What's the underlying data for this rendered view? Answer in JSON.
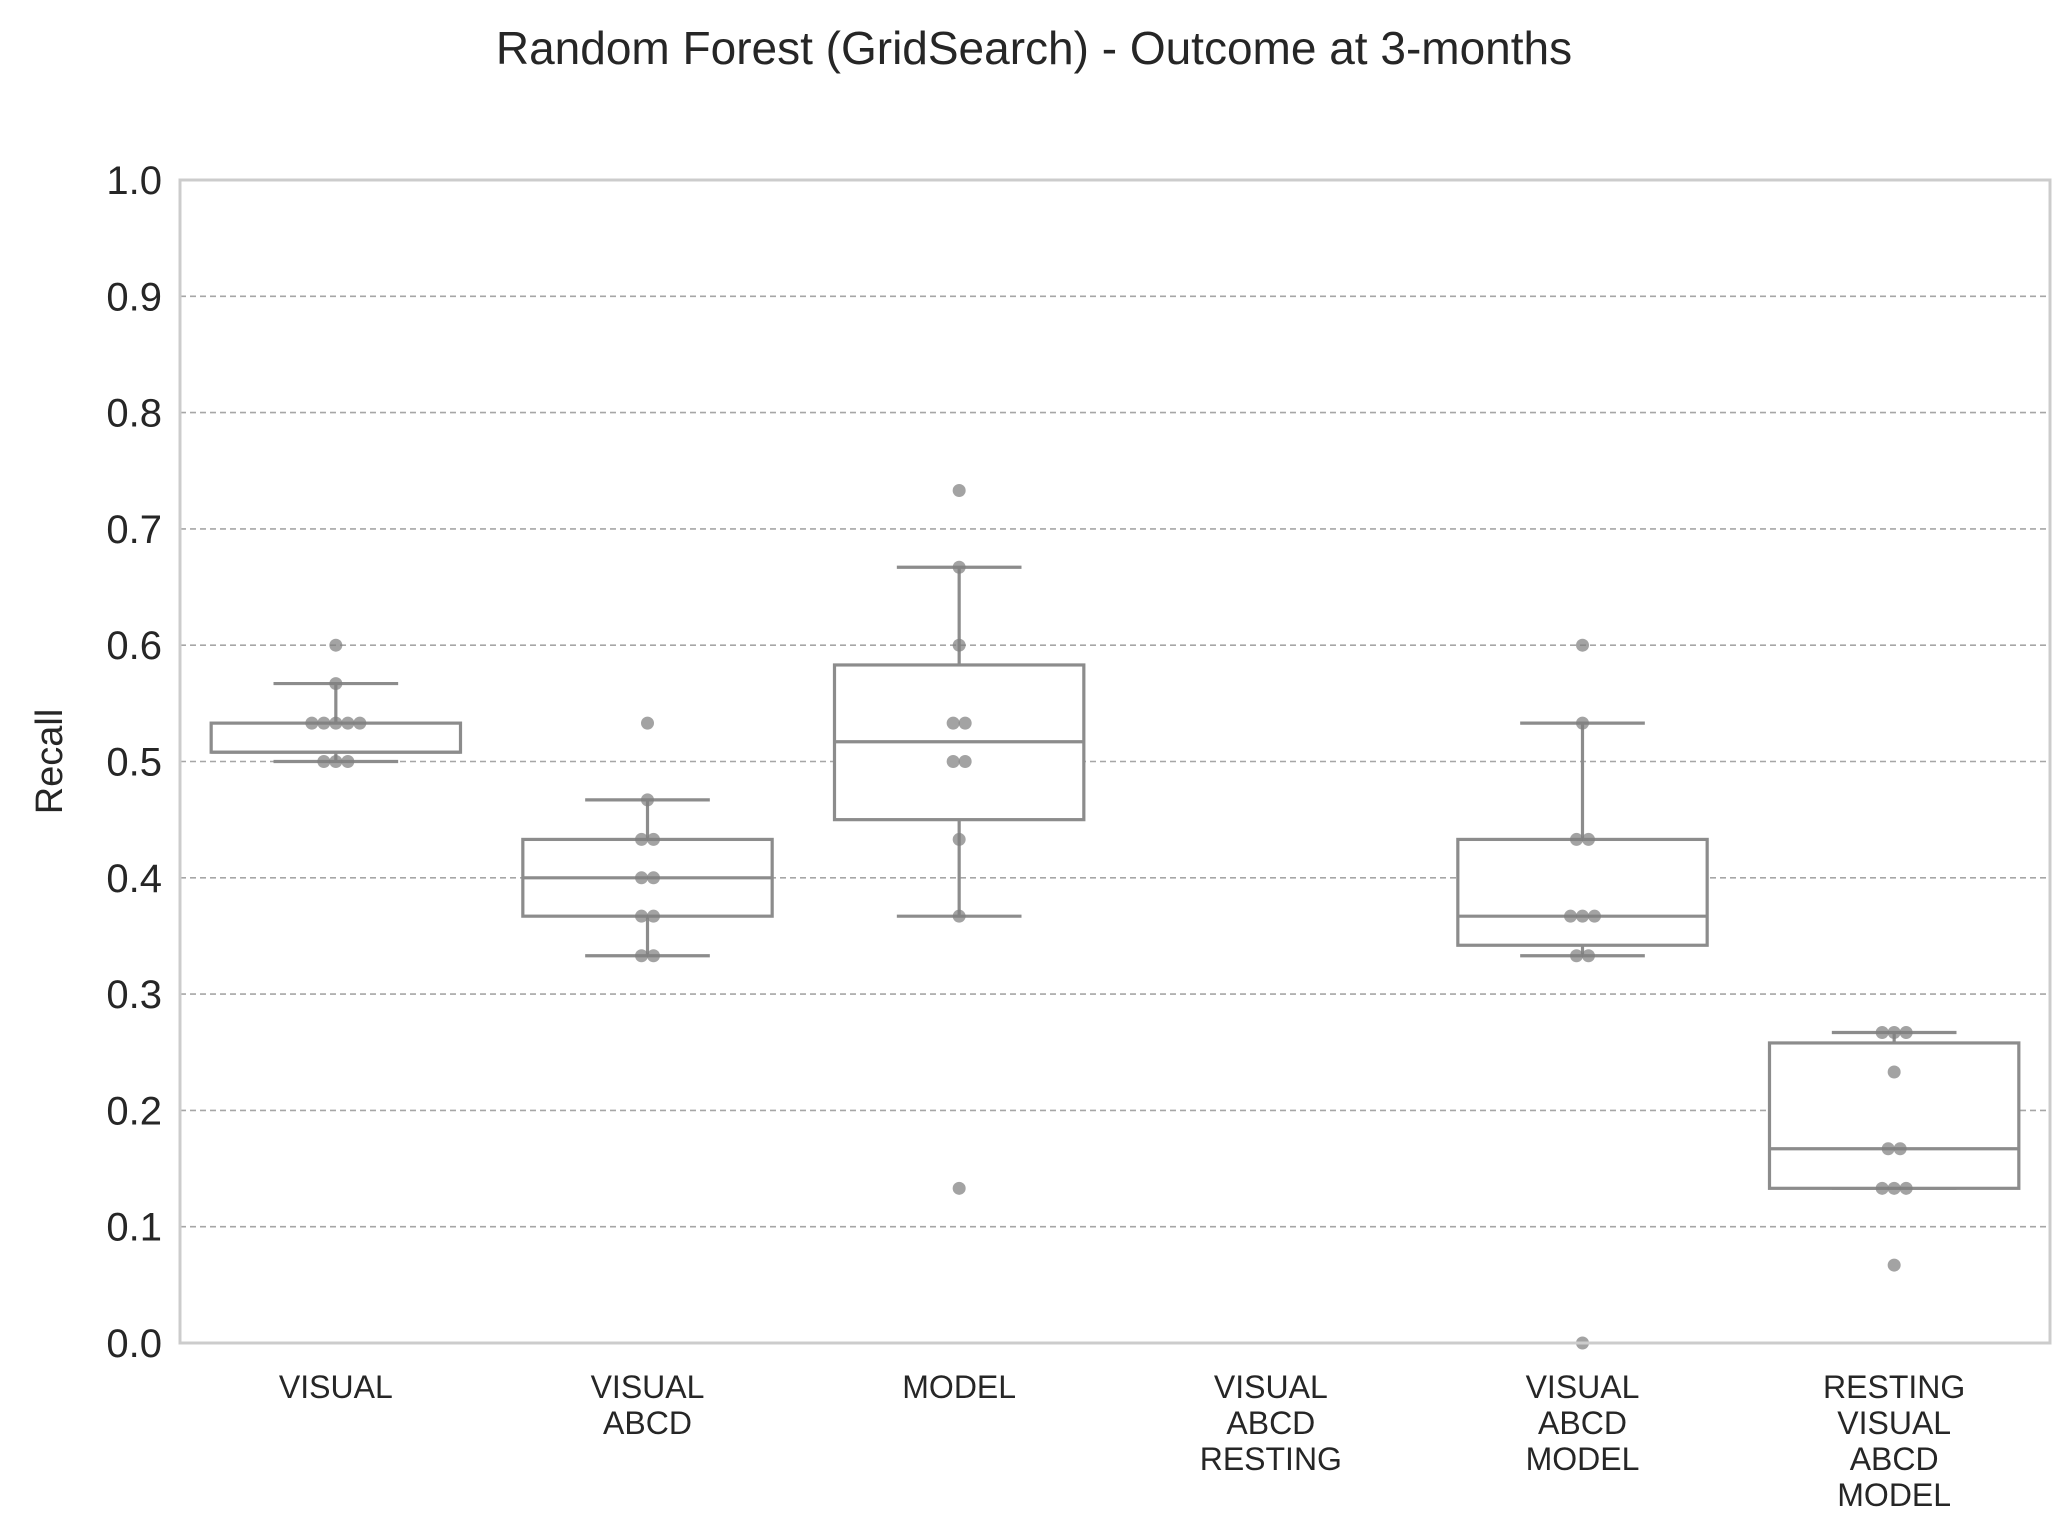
{
  "chart_data": {
    "type": "box",
    "title": "Random Forest (GridSearch) - Outcome at 3-months",
    "xlabel": "",
    "ylabel": "Recall",
    "ylim": [
      0.0,
      1.0
    ],
    "yticks": [
      "0.0",
      "0.1",
      "0.2",
      "0.3",
      "0.4",
      "0.5",
      "0.6",
      "0.7",
      "0.8",
      "0.9",
      "1.0"
    ],
    "grid": "horizontal dashed",
    "colors": {
      "box": "#8c8c8c",
      "points": "#808080",
      "grid": "#a6a6a6",
      "frame": "#cccccc"
    },
    "categories": [
      {
        "label_lines": [
          "VISUAL"
        ],
        "box": {
          "q1": 0.508,
          "median": 0.508,
          "q3": 0.533,
          "whisker_low": 0.5,
          "whisker_high": 0.567
        },
        "points": [
          0.6,
          0.567,
          0.533,
          0.533,
          0.533,
          0.533,
          0.533,
          0.5,
          0.5,
          0.5
        ]
      },
      {
        "label_lines": [
          "VISUAL",
          "ABCD"
        ],
        "box": {
          "q1": 0.367,
          "median": 0.4,
          "q3": 0.433,
          "whisker_low": 0.333,
          "whisker_high": 0.467
        },
        "points": [
          0.533,
          0.467,
          0.433,
          0.433,
          0.4,
          0.4,
          0.367,
          0.367,
          0.333,
          0.333
        ]
      },
      {
        "label_lines": [
          "MODEL"
        ],
        "box": {
          "q1": 0.45,
          "median": 0.517,
          "q3": 0.583,
          "whisker_low": 0.367,
          "whisker_high": 0.667
        },
        "points": [
          0.733,
          0.667,
          0.6,
          0.533,
          0.533,
          0.5,
          0.5,
          0.433,
          0.367,
          0.133
        ]
      },
      {
        "label_lines": [
          "VISUAL",
          "ABCD",
          "RESTING"
        ],
        "box": null,
        "points": []
      },
      {
        "label_lines": [
          "VISUAL",
          "ABCD",
          "MODEL"
        ],
        "box": {
          "q1": 0.342,
          "median": 0.367,
          "q3": 0.433,
          "whisker_low": 0.333,
          "whisker_high": 0.533
        },
        "points": [
          0.6,
          0.533,
          0.433,
          0.433,
          0.367,
          0.367,
          0.367,
          0.333,
          0.333,
          0.0
        ]
      },
      {
        "label_lines": [
          "RESTING",
          "VISUAL",
          "ABCD",
          "MODEL"
        ],
        "box": {
          "q1": 0.133,
          "median": 0.167,
          "q3": 0.258,
          "whisker_low": 0.133,
          "whisker_high": 0.267
        },
        "points": [
          0.267,
          0.267,
          0.267,
          0.233,
          0.167,
          0.167,
          0.133,
          0.133,
          0.133,
          0.067
        ]
      }
    ]
  }
}
